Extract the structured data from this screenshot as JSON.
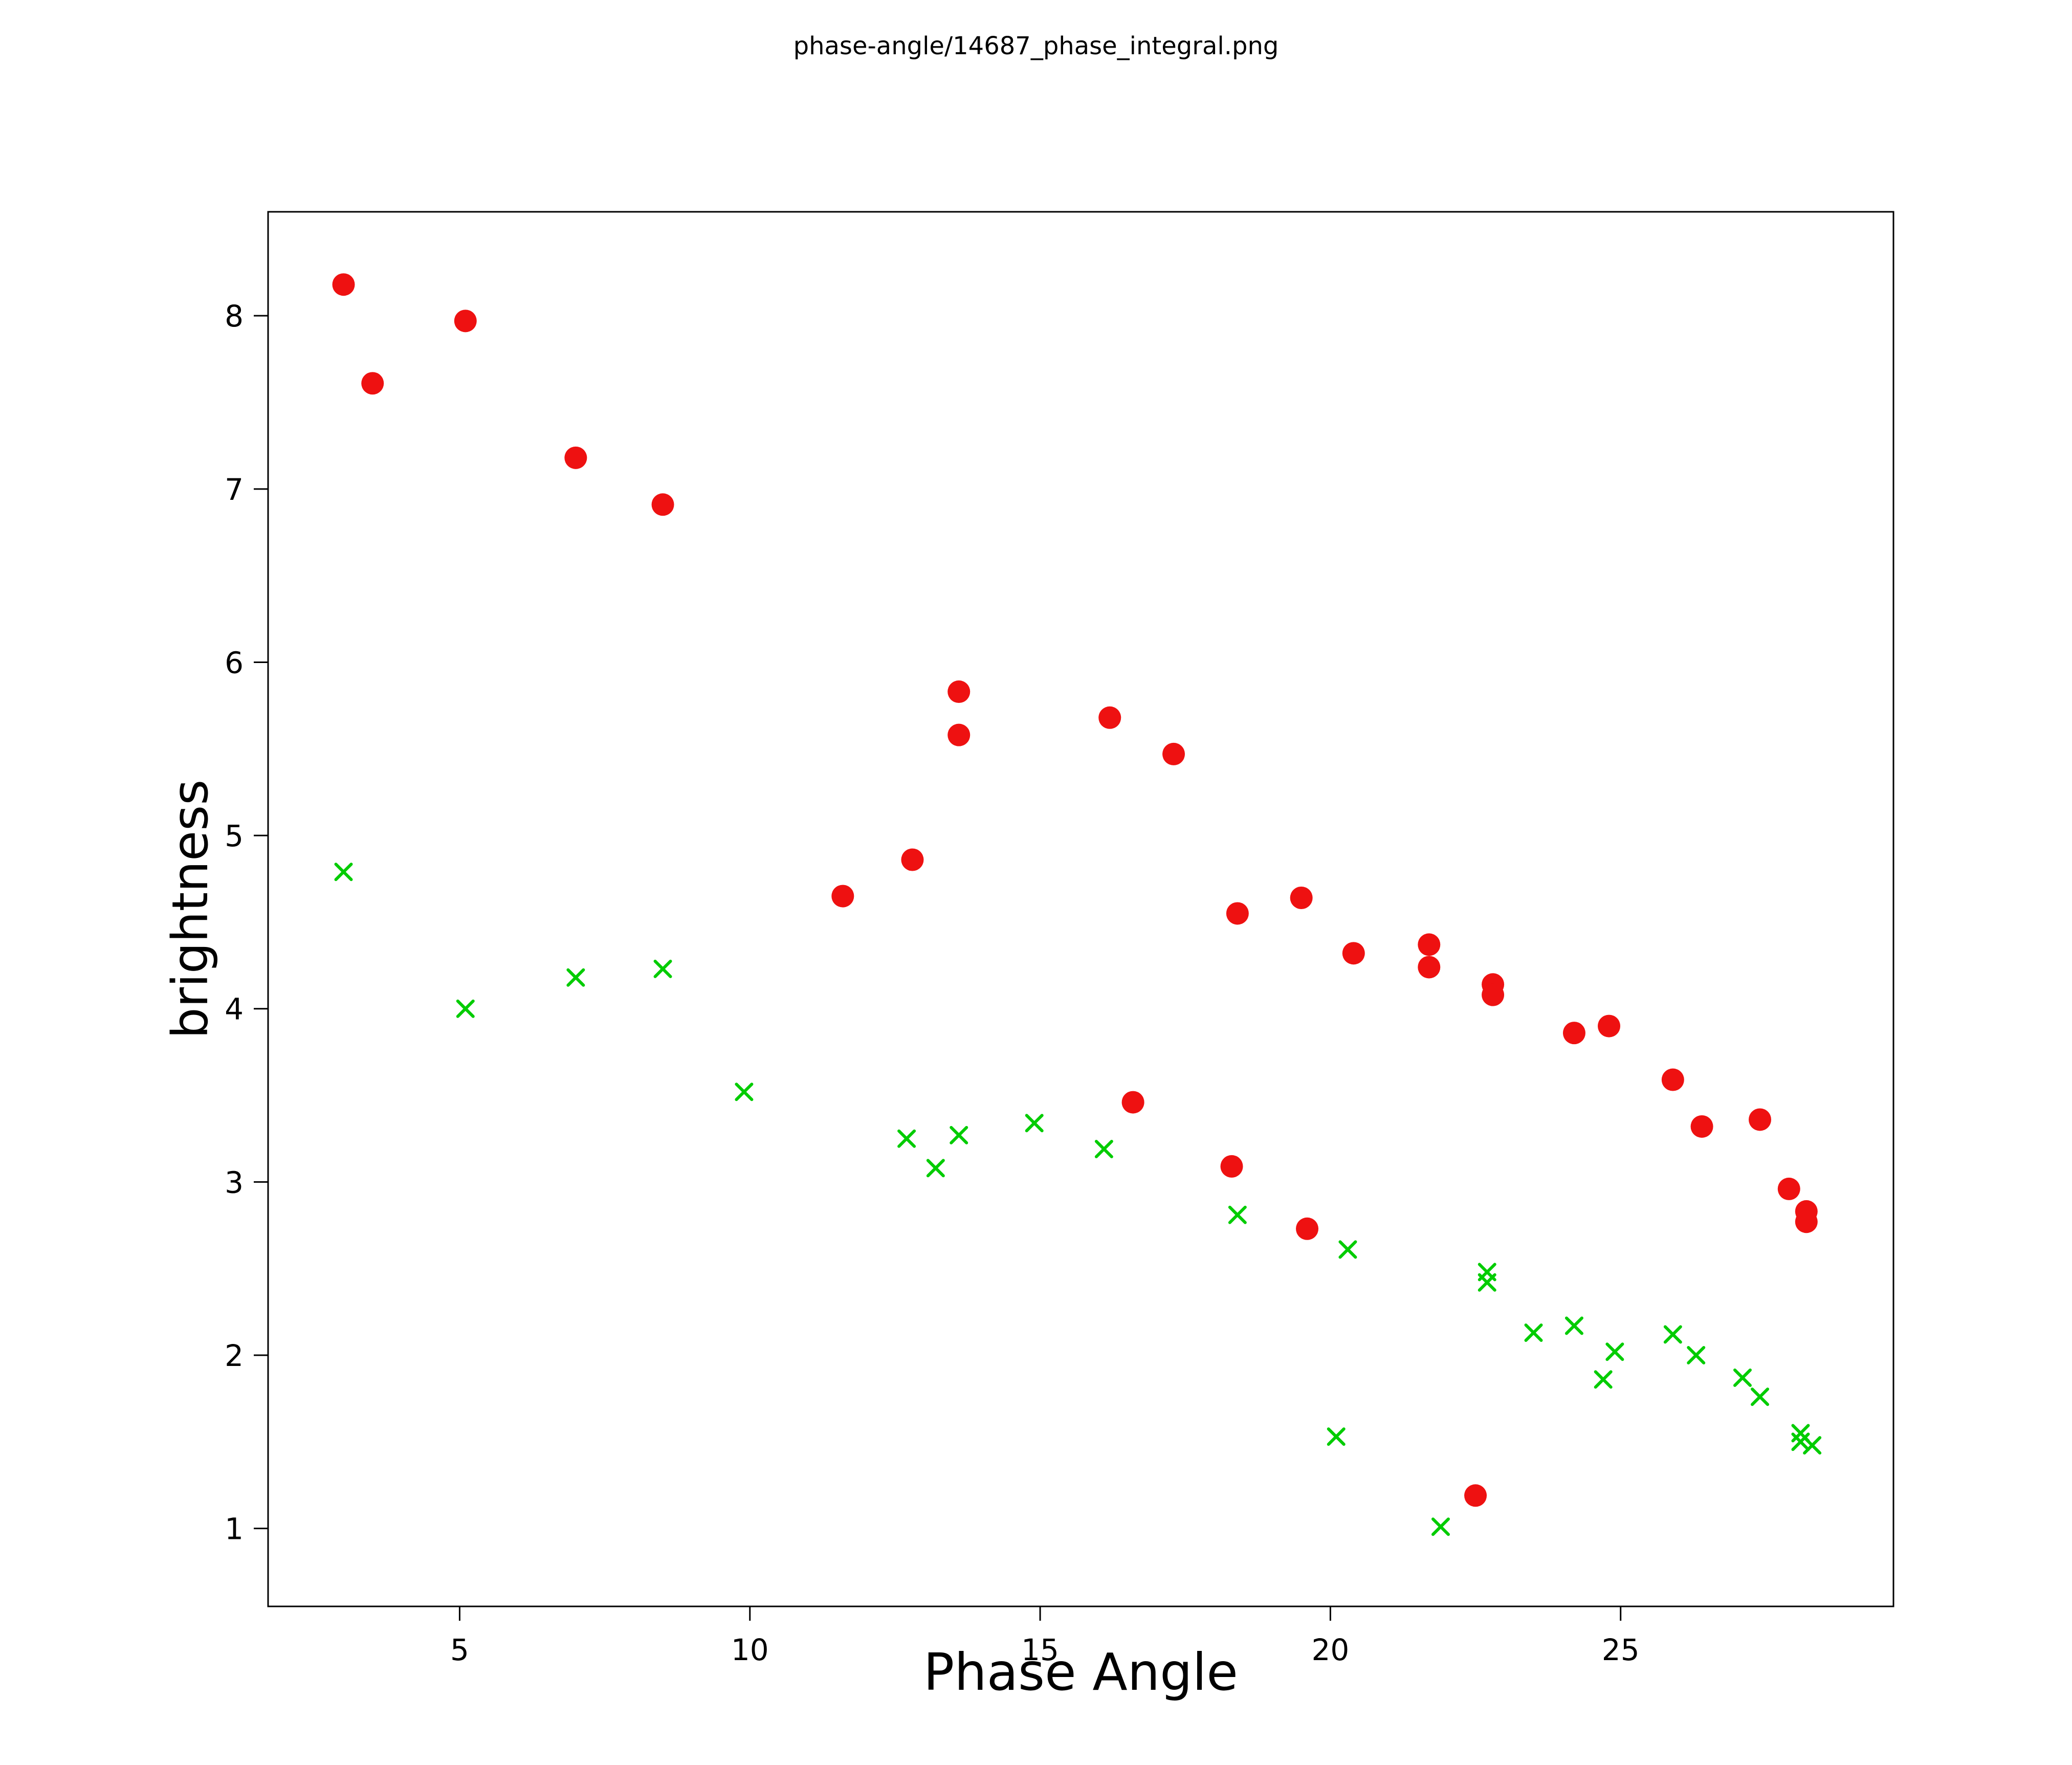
{
  "chart_data": {
    "type": "scatter",
    "title": "phase-angle/14687_phase_integral.png",
    "xlabel": "Phase Angle",
    "ylabel": "brightness",
    "xlim": [
      1.7,
      29.7
    ],
    "ylim": [
      0.55,
      8.6
    ],
    "x_ticks": [
      5,
      10,
      15,
      20,
      25
    ],
    "y_ticks": [
      1,
      2,
      3,
      4,
      5,
      6,
      7,
      8
    ],
    "grid": false,
    "legend": "none",
    "series": [
      {
        "name": "red-circles",
        "marker": "circle",
        "color": "#ee1111",
        "points": [
          [
            3.0,
            8.18
          ],
          [
            3.5,
            7.61
          ],
          [
            5.1,
            7.97
          ],
          [
            7.0,
            7.18
          ],
          [
            8.5,
            6.91
          ],
          [
            11.6,
            4.65
          ],
          [
            12.8,
            4.86
          ],
          [
            13.6,
            5.83
          ],
          [
            13.6,
            5.58
          ],
          [
            16.2,
            5.68
          ],
          [
            17.3,
            5.47
          ],
          [
            18.4,
            4.55
          ],
          [
            19.5,
            4.64
          ],
          [
            20.4,
            4.32
          ],
          [
            21.7,
            4.37
          ],
          [
            21.7,
            4.24
          ],
          [
            22.8,
            4.14
          ],
          [
            22.8,
            4.08
          ],
          [
            24.2,
            3.86
          ],
          [
            24.8,
            3.9
          ],
          [
            25.9,
            3.59
          ],
          [
            26.4,
            3.32
          ],
          [
            27.4,
            3.36
          ],
          [
            16.6,
            3.46
          ],
          [
            18.3,
            3.09
          ],
          [
            19.6,
            2.73
          ],
          [
            22.5,
            1.19
          ],
          [
            27.9,
            2.96
          ],
          [
            28.2,
            2.83
          ],
          [
            28.2,
            2.77
          ]
        ]
      },
      {
        "name": "green-x",
        "marker": "x",
        "color": "#00cc00",
        "points": [
          [
            3.0,
            4.79
          ],
          [
            5.1,
            4.0
          ],
          [
            7.0,
            4.18
          ],
          [
            8.5,
            4.23
          ],
          [
            9.9,
            3.52
          ],
          [
            12.7,
            3.25
          ],
          [
            13.2,
            3.08
          ],
          [
            13.6,
            3.27
          ],
          [
            14.9,
            3.34
          ],
          [
            16.1,
            3.19
          ],
          [
            18.4,
            2.81
          ],
          [
            20.3,
            2.61
          ],
          [
            20.1,
            1.53
          ],
          [
            22.7,
            2.48
          ],
          [
            22.7,
            2.42
          ],
          [
            23.5,
            2.13
          ],
          [
            24.2,
            2.17
          ],
          [
            24.7,
            1.86
          ],
          [
            24.9,
            2.02
          ],
          [
            25.9,
            2.12
          ],
          [
            26.3,
            2.0
          ],
          [
            27.1,
            1.87
          ],
          [
            27.4,
            1.76
          ],
          [
            28.1,
            1.55
          ],
          [
            28.1,
            1.5
          ],
          [
            28.3,
            1.48
          ],
          [
            21.9,
            1.01
          ]
        ]
      }
    ]
  }
}
